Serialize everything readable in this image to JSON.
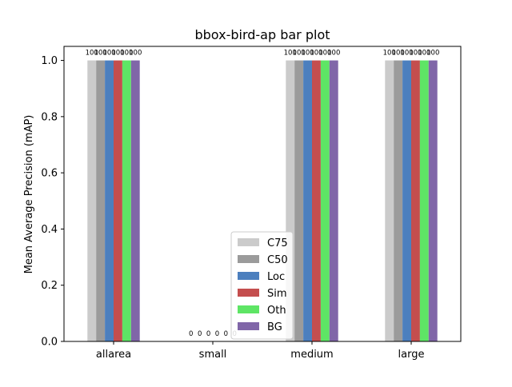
{
  "chart_data": {
    "type": "bar",
    "title": "bbox-bird-ap bar plot",
    "xlabel": "",
    "ylabel": "Mean Average Precision (mAP)",
    "ylim": [
      0,
      1.05
    ],
    "yticks": [
      0.0,
      0.2,
      0.4,
      0.6,
      0.8,
      1.0
    ],
    "ytick_labels": [
      "0.0",
      "0.2",
      "0.4",
      "0.6",
      "0.8",
      "1.0"
    ],
    "categories": [
      "allarea",
      "small",
      "medium",
      "large"
    ],
    "series": [
      {
        "name": "C75",
        "color": "#cbcbcb",
        "values": [
          1.0,
          0.0,
          1.0,
          1.0
        ],
        "labels": [
          "100",
          "0",
          "100",
          "100"
        ]
      },
      {
        "name": "C50",
        "color": "#9b9b9b",
        "values": [
          1.0,
          0.0,
          1.0,
          1.0
        ],
        "labels": [
          "100",
          "0",
          "100",
          "100"
        ]
      },
      {
        "name": "Loc",
        "color": "#4c7fbe",
        "values": [
          1.0,
          0.0,
          1.0,
          1.0
        ],
        "labels": [
          "100",
          "0",
          "100",
          "100"
        ]
      },
      {
        "name": "Sim",
        "color": "#c44e4e",
        "values": [
          1.0,
          0.0,
          1.0,
          1.0
        ],
        "labels": [
          "100",
          "0",
          "100",
          "100"
        ]
      },
      {
        "name": "Oth",
        "color": "#5ee565",
        "values": [
          1.0,
          0.0,
          1.0,
          1.0
        ],
        "labels": [
          "100",
          "0",
          "100",
          "100"
        ]
      },
      {
        "name": "BG",
        "color": "#8066a8",
        "values": [
          1.0,
          0.0,
          1.0,
          1.0
        ],
        "labels": [
          "100",
          "0",
          "100",
          "100"
        ]
      }
    ],
    "legend_position": "lower-center",
    "grid": false
  }
}
